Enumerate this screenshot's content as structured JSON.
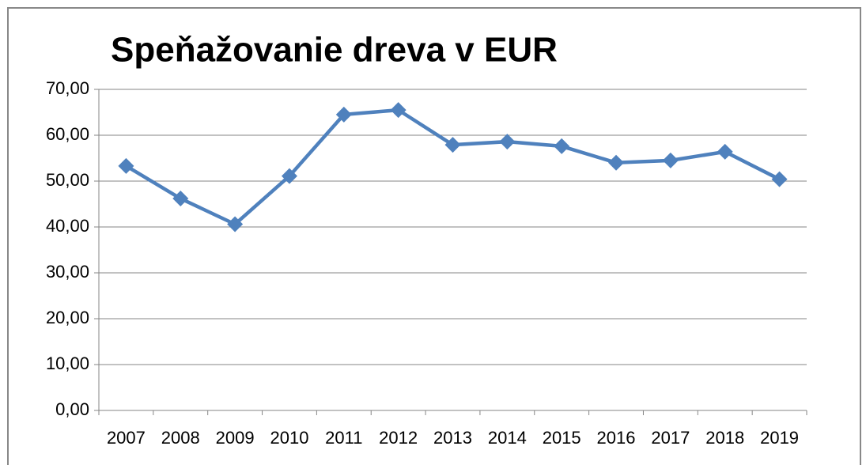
{
  "chart_data": {
    "type": "line",
    "title": "Speňažovanie dreva v EUR",
    "categories": [
      "2007",
      "2008",
      "2009",
      "2010",
      "2011",
      "2012",
      "2013",
      "2014",
      "2015",
      "2016",
      "2017",
      "2018",
      "2019"
    ],
    "series": [
      {
        "name": "Speňažovanie dreva v EUR",
        "color": "#4f81bd",
        "values": [
          53.3,
          46.2,
          40.6,
          51.1,
          64.5,
          65.5,
          57.9,
          58.6,
          57.6,
          54.0,
          54.5,
          56.4,
          50.4
        ]
      }
    ],
    "ylim": [
      0,
      70
    ],
    "yticks": [
      {
        "value": 0,
        "label": "0,00"
      },
      {
        "value": 10,
        "label": "10,00"
      },
      {
        "value": 20,
        "label": "20,00"
      },
      {
        "value": 30,
        "label": "30,00"
      },
      {
        "value": 40,
        "label": "40,00"
      },
      {
        "value": 50,
        "label": "50,00"
      },
      {
        "value": 60,
        "label": "60,00"
      },
      {
        "value": 70,
        "label": "70,00"
      }
    ],
    "grid": true
  }
}
